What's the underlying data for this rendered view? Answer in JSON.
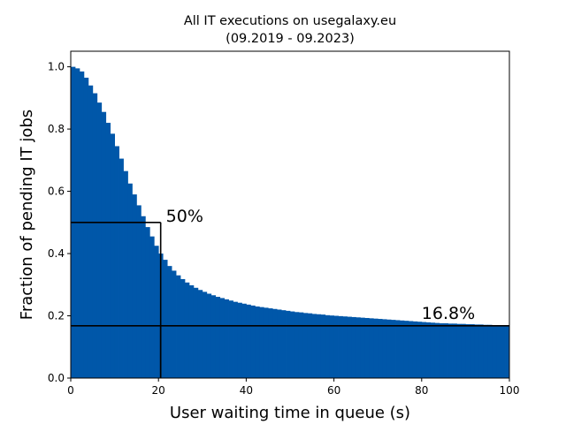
{
  "chart_data": {
    "type": "bar",
    "title": "All IT executions on usegalaxy.eu",
    "subtitle": "(09.2019 - 09.2023)",
    "xlabel": "User waiting time in queue (s)",
    "ylabel": "Fraction of pending IT jobs",
    "xlim": [
      0,
      100
    ],
    "ylim": [
      0,
      1.05
    ],
    "xticks": [
      "0",
      "20",
      "40",
      "60",
      "80",
      "100"
    ],
    "yticks": [
      "0.0",
      "0.2",
      "0.4",
      "0.6",
      "0.8",
      "1.0"
    ],
    "bar_color": "#0057a9",
    "bin_width": 1,
    "values": [
      1.0,
      0.995,
      0.985,
      0.965,
      0.94,
      0.915,
      0.885,
      0.855,
      0.82,
      0.785,
      0.745,
      0.705,
      0.665,
      0.625,
      0.59,
      0.555,
      0.52,
      0.485,
      0.455,
      0.425,
      0.4,
      0.38,
      0.36,
      0.345,
      0.33,
      0.318,
      0.307,
      0.298,
      0.29,
      0.283,
      0.277,
      0.271,
      0.266,
      0.261,
      0.257,
      0.253,
      0.249,
      0.245,
      0.242,
      0.239,
      0.236,
      0.233,
      0.23,
      0.228,
      0.226,
      0.224,
      0.222,
      0.22,
      0.218,
      0.216,
      0.214,
      0.212,
      0.211,
      0.209,
      0.208,
      0.206,
      0.205,
      0.204,
      0.202,
      0.201,
      0.2,
      0.199,
      0.198,
      0.197,
      0.196,
      0.195,
      0.194,
      0.193,
      0.192,
      0.191,
      0.19,
      0.189,
      0.188,
      0.187,
      0.186,
      0.185,
      0.184,
      0.183,
      0.182,
      0.181,
      0.18,
      0.179,
      0.178,
      0.177,
      0.176,
      0.176,
      0.175,
      0.175,
      0.174,
      0.174,
      0.173,
      0.173,
      0.172,
      0.172,
      0.171,
      0.171,
      0.17,
      0.17,
      0.169,
      0.168
    ],
    "reference_lines": [
      {
        "x": 20.5,
        "y": 0.5,
        "label": "50%"
      },
      {
        "x": 100,
        "y": 0.168,
        "label": "16.8%"
      }
    ]
  }
}
